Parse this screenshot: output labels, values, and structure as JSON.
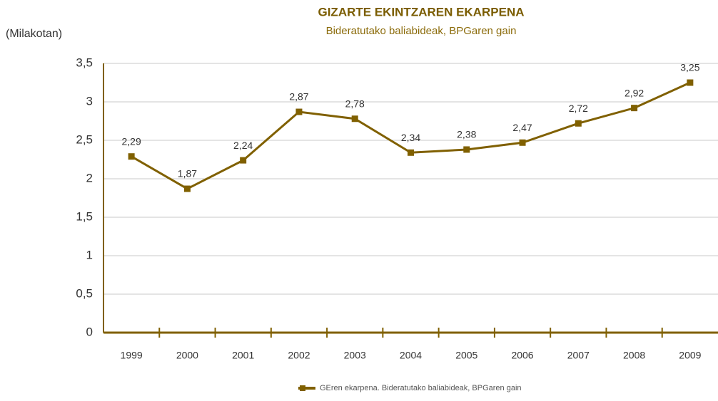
{
  "chart_data": {
    "type": "line",
    "title": "GIZARTE EKINTZAREN EKARPENA",
    "subtitle": "Bideratutako baliabideak, BPGaren gain",
    "ylabel": "(Milakotan)",
    "categories": [
      "1999",
      "2000",
      "2001",
      "2002",
      "2003",
      "2004",
      "2005",
      "2006",
      "2007",
      "2008",
      "2009"
    ],
    "series": [
      {
        "name": "GEren ekarpena. Bideratutako baliabideak, BPGaren gain",
        "color": "#806000",
        "values": [
          2.29,
          1.87,
          2.24,
          2.87,
          2.78,
          2.34,
          2.38,
          2.47,
          2.72,
          2.92,
          3.25
        ],
        "value_labels": [
          "2,29",
          "1,87",
          "2,24",
          "2,87",
          "2,78",
          "2,34",
          "2,38",
          "2,47",
          "2,72",
          "2,92",
          "3,25"
        ]
      }
    ],
    "ylim": [
      0,
      3.5
    ],
    "yticks": [
      0,
      {
        "value": 0.5,
        "label": "0,5"
      },
      1,
      {
        "value": 1.5,
        "label": "1,5"
      },
      2,
      {
        "value": 2.5,
        "label": "2,5"
      },
      3,
      {
        "value": 3.5,
        "label": "3,5"
      }
    ],
    "grid": true,
    "legend": "bottom"
  }
}
